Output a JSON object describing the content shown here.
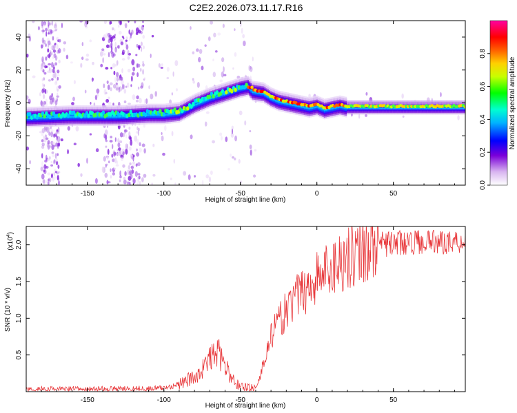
{
  "title": "C2E2.2026.073.11.17.R16",
  "chart_data": [
    {
      "type": "heatmap",
      "name": "spectrogram",
      "xlabel": "Height of straight line (km)",
      "ylabel": "Frequency (Hz)",
      "xlim": [
        -190,
        97
      ],
      "ylim": [
        -50,
        50
      ],
      "xticks": [
        -150,
        -100,
        -50,
        0,
        50
      ],
      "yticks": [
        -40,
        -20,
        0,
        20,
        40
      ],
      "ridge": {
        "x": [
          -190,
          -160,
          -130,
          -110,
          -100,
          -90,
          -80,
          -70,
          -60,
          -50,
          -45,
          -42,
          -35,
          -30,
          -25,
          -20,
          -15,
          -10,
          -5,
          0,
          5,
          10,
          15,
          20,
          40,
          60,
          80,
          97
        ],
        "y": [
          -8,
          -7,
          -7,
          -6,
          -6,
          -5,
          0,
          4,
          7,
          10,
          11,
          8,
          7,
          4,
          2,
          1,
          0,
          -1,
          -2,
          -1,
          -3,
          -2,
          -1,
          -2,
          -2,
          -2,
          -2,
          -2
        ]
      },
      "colorbar": {
        "label": "Normalized spectral amplitude",
        "range": [
          0.0,
          1.0
        ],
        "ticks": [
          0.0,
          0.2,
          0.4,
          0.6,
          0.8
        ],
        "tick_labels": [
          "0.0",
          "0.2",
          "0.4",
          "0.6",
          "0.8"
        ]
      }
    },
    {
      "type": "line",
      "name": "snr",
      "xlabel": "Height of straight line (km)",
      "ylabel": "SNR (10 * v/v)",
      "y_multiplier": "(x10",
      "y_multiplier_exp": "4",
      "y_multiplier_close": ")",
      "xlim": [
        -190,
        97
      ],
      "ylim": [
        0,
        2.25
      ],
      "xticks": [
        -150,
        -100,
        -50,
        0,
        50
      ],
      "yticks": [
        0.5,
        1.0,
        1.5,
        2.0
      ],
      "color": "#e8383b",
      "envelope": {
        "x": [
          -190,
          -110,
          -100,
          -90,
          -80,
          -75,
          -70,
          -65,
          -60,
          -55,
          -50,
          -45,
          -40,
          -37,
          -35,
          -32,
          -30,
          -25,
          -20,
          -15,
          -10,
          -5,
          0,
          10,
          20,
          30,
          40,
          50,
          60,
          70,
          80,
          97
        ],
        "y": [
          0.03,
          0.04,
          0.05,
          0.1,
          0.2,
          0.3,
          0.45,
          0.55,
          0.35,
          0.15,
          0.08,
          0.05,
          0.05,
          0.2,
          0.4,
          0.6,
          0.75,
          0.95,
          1.1,
          1.25,
          1.35,
          1.45,
          1.55,
          1.7,
          1.85,
          1.95,
          2.0,
          2.02,
          2.05,
          2.05,
          2.05,
          2.05
        ]
      }
    }
  ]
}
